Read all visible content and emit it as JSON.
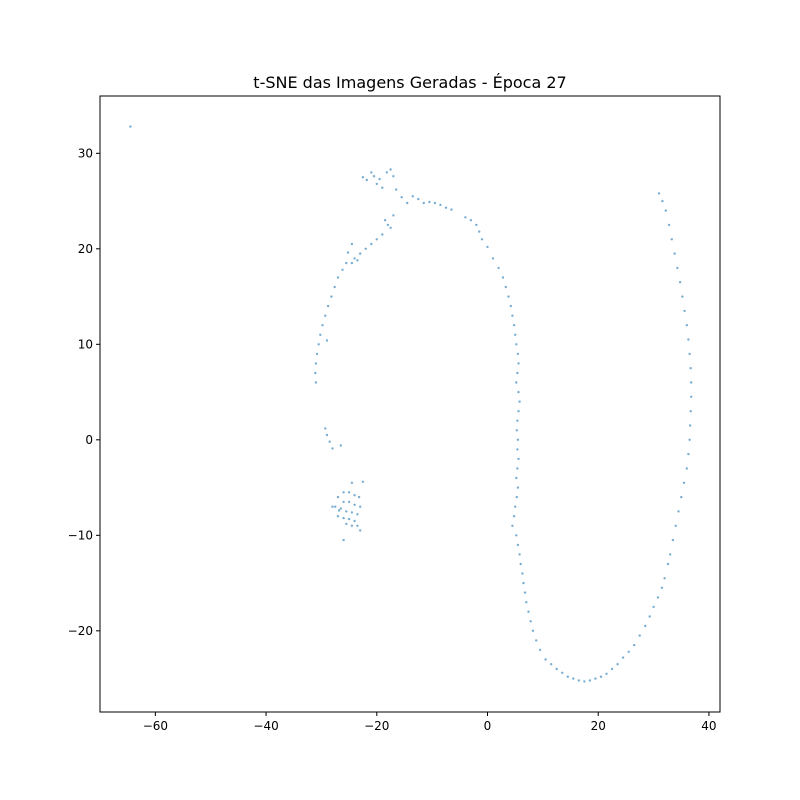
{
  "chart_data": {
    "type": "scatter",
    "title": "t-SNE das Imagens Geradas - Época 27",
    "xlabel": "",
    "ylabel": "",
    "xlim": [
      -70,
      42
    ],
    "ylim": [
      -28.5,
      36
    ],
    "xticks": [
      -60,
      -40,
      -20,
      0,
      20,
      40
    ],
    "yticks": [
      -20,
      -10,
      0,
      10,
      20,
      30
    ],
    "xtick_labels": [
      "−60",
      "−40",
      "−20",
      "0",
      "20",
      "40"
    ],
    "ytick_labels": [
      "−20",
      "−10",
      "0",
      "10",
      "20",
      "30"
    ],
    "grid": false,
    "legend": "none",
    "point_color": "#1f77b4",
    "point_alpha": 0.6,
    "points": [
      [
        -64.5,
        32.8
      ],
      [
        -22.5,
        27.5
      ],
      [
        -21.8,
        27.2
      ],
      [
        -21.0,
        28.0
      ],
      [
        -20.5,
        27.6
      ],
      [
        -20.0,
        26.8
      ],
      [
        -19.5,
        27.3
      ],
      [
        -19.0,
        26.4
      ],
      [
        -18.2,
        28.0
      ],
      [
        -17.5,
        28.3
      ],
      [
        -17.0,
        27.6
      ],
      [
        -16.5,
        26.2
      ],
      [
        -15.5,
        25.4
      ],
      [
        -14.5,
        24.8
      ],
      [
        -13.5,
        25.5
      ],
      [
        -12.5,
        25.2
      ],
      [
        -11.5,
        24.8
      ],
      [
        -10.5,
        24.9
      ],
      [
        -9.5,
        24.8
      ],
      [
        -8.5,
        24.6
      ],
      [
        -7.5,
        24.3
      ],
      [
        -6.5,
        24.1
      ],
      [
        -18.5,
        23.0
      ],
      [
        -18.0,
        22.5
      ],
      [
        -17.5,
        22.2
      ],
      [
        -17.0,
        23.5
      ],
      [
        -19.0,
        21.5
      ],
      [
        -20.0,
        21.0
      ],
      [
        -21.0,
        20.5
      ],
      [
        -22.0,
        20.0
      ],
      [
        -23.0,
        19.5
      ],
      [
        -24.0,
        19.0
      ],
      [
        -24.5,
        18.5
      ],
      [
        -25.5,
        18.5
      ],
      [
        -26.2,
        17.8
      ],
      [
        -27.0,
        17.0
      ],
      [
        -27.6,
        16.0
      ],
      [
        -28.2,
        15.0
      ],
      [
        -28.8,
        14.0
      ],
      [
        -29.3,
        13.0
      ],
      [
        -29.8,
        12.0
      ],
      [
        -30.2,
        11.0
      ],
      [
        -30.5,
        10.0
      ],
      [
        -30.8,
        9.0
      ],
      [
        -31.0,
        8.0
      ],
      [
        -31.1,
        7.0
      ],
      [
        -31.0,
        6.0
      ],
      [
        -24.5,
        20.5
      ],
      [
        -25.2,
        19.6
      ],
      [
        -23.5,
        18.8
      ],
      [
        -29.0,
        10.4
      ],
      [
        -29.3,
        1.2
      ],
      [
        -29.0,
        0.5
      ],
      [
        -28.5,
        -0.2
      ],
      [
        -28.0,
        -0.9
      ],
      [
        -26.5,
        -0.6
      ],
      [
        -24.5,
        -4.5
      ],
      [
        -22.5,
        -4.4
      ],
      [
        -26.0,
        -5.5
      ],
      [
        -25.0,
        -5.5
      ],
      [
        -24.0,
        -5.8
      ],
      [
        -23.2,
        -6.0
      ],
      [
        -27.0,
        -6.0
      ],
      [
        -26.0,
        -6.5
      ],
      [
        -25.0,
        -6.5
      ],
      [
        -24.0,
        -6.8
      ],
      [
        -23.0,
        -7.0
      ],
      [
        -27.5,
        -7.0
      ],
      [
        -26.5,
        -7.2
      ],
      [
        -25.5,
        -7.5
      ],
      [
        -24.5,
        -7.6
      ],
      [
        -23.5,
        -7.8
      ],
      [
        -27.0,
        -8.0
      ],
      [
        -26.0,
        -8.2
      ],
      [
        -25.0,
        -8.3
      ],
      [
        -24.0,
        -8.5
      ],
      [
        -23.5,
        -9.0
      ],
      [
        -24.5,
        -9.0
      ],
      [
        -25.5,
        -8.8
      ],
      [
        -23.0,
        -9.5
      ],
      [
        -28.0,
        -7.0
      ],
      [
        -26.8,
        -7.4
      ],
      [
        -26.0,
        -10.5
      ],
      [
        -4.0,
        23.3
      ],
      [
        -3.0,
        23.0
      ],
      [
        -2.0,
        22.5
      ],
      [
        -1.5,
        21.8
      ],
      [
        -1.0,
        21.0
      ],
      [
        0.0,
        20.2
      ],
      [
        1.0,
        19.0
      ],
      [
        2.0,
        18.0
      ],
      [
        2.8,
        17.0
      ],
      [
        3.3,
        16.0
      ],
      [
        3.8,
        15.0
      ],
      [
        4.2,
        14.0
      ],
      [
        4.5,
        13.0
      ],
      [
        4.8,
        12.0
      ],
      [
        5.0,
        11.0
      ],
      [
        5.2,
        10.0
      ],
      [
        5.5,
        9.0
      ],
      [
        5.6,
        8.0
      ],
      [
        5.4,
        7.0
      ],
      [
        5.2,
        6.0
      ],
      [
        5.6,
        5.0
      ],
      [
        5.8,
        4.0
      ],
      [
        5.6,
        3.0
      ],
      [
        5.4,
        2.0
      ],
      [
        5.3,
        1.0
      ],
      [
        5.5,
        0.0
      ],
      [
        5.4,
        -1.0
      ],
      [
        5.6,
        -2.0
      ],
      [
        5.4,
        -3.0
      ],
      [
        5.2,
        -4.0
      ],
      [
        5.5,
        -5.0
      ],
      [
        5.3,
        -6.0
      ],
      [
        5.0,
        -7.0
      ],
      [
        4.8,
        -8.0
      ],
      [
        4.5,
        -9.0
      ],
      [
        5.2,
        -10.0
      ],
      [
        5.5,
        -11.0
      ],
      [
        5.8,
        -12.0
      ],
      [
        6.0,
        -13.0
      ],
      [
        6.3,
        -14.0
      ],
      [
        6.5,
        -15.0
      ],
      [
        6.8,
        -16.0
      ],
      [
        7.0,
        -17.0
      ],
      [
        7.4,
        -18.0
      ],
      [
        7.8,
        -19.0
      ],
      [
        8.2,
        -20.0
      ],
      [
        8.8,
        -21.0
      ],
      [
        9.5,
        -22.0
      ],
      [
        10.5,
        -23.0
      ],
      [
        11.5,
        -23.5
      ],
      [
        12.5,
        -24.0
      ],
      [
        13.5,
        -24.4
      ],
      [
        14.5,
        -24.8
      ],
      [
        15.5,
        -25.0
      ],
      [
        16.5,
        -25.2
      ],
      [
        17.5,
        -25.3
      ],
      [
        18.5,
        -25.2
      ],
      [
        19.5,
        -25.0
      ],
      [
        20.5,
        -24.8
      ],
      [
        21.5,
        -24.5
      ],
      [
        22.5,
        -24.0
      ],
      [
        23.5,
        -23.5
      ],
      [
        24.5,
        -22.8
      ],
      [
        25.5,
        -22.2
      ],
      [
        26.5,
        -21.5
      ],
      [
        27.5,
        -20.5
      ],
      [
        28.5,
        -19.5
      ],
      [
        29.3,
        -18.5
      ],
      [
        30.0,
        -17.5
      ],
      [
        30.8,
        -16.5
      ],
      [
        31.5,
        -15.5
      ],
      [
        32.0,
        -14.5
      ],
      [
        32.6,
        -13.0
      ],
      [
        33.0,
        -12.0
      ],
      [
        33.5,
        -10.5
      ],
      [
        34.0,
        -9.0
      ],
      [
        34.5,
        -7.5
      ],
      [
        35.0,
        -6.0
      ],
      [
        35.5,
        -4.5
      ],
      [
        36.0,
        -3.0
      ],
      [
        36.3,
        -1.5
      ],
      [
        36.5,
        0.0
      ],
      [
        36.6,
        1.5
      ],
      [
        36.7,
        3.0
      ],
      [
        36.8,
        4.5
      ],
      [
        36.8,
        6.0
      ],
      [
        36.7,
        7.5
      ],
      [
        36.5,
        9.0
      ],
      [
        36.3,
        10.5
      ],
      [
        36.0,
        12.0
      ],
      [
        35.6,
        13.5
      ],
      [
        35.2,
        15.0
      ],
      [
        34.8,
        16.5
      ],
      [
        34.3,
        18.0
      ],
      [
        33.8,
        19.5
      ],
      [
        33.3,
        21.0
      ],
      [
        32.8,
        22.5
      ],
      [
        32.2,
        24.0
      ],
      [
        31.6,
        25.0
      ],
      [
        31.0,
        25.8
      ]
    ]
  }
}
